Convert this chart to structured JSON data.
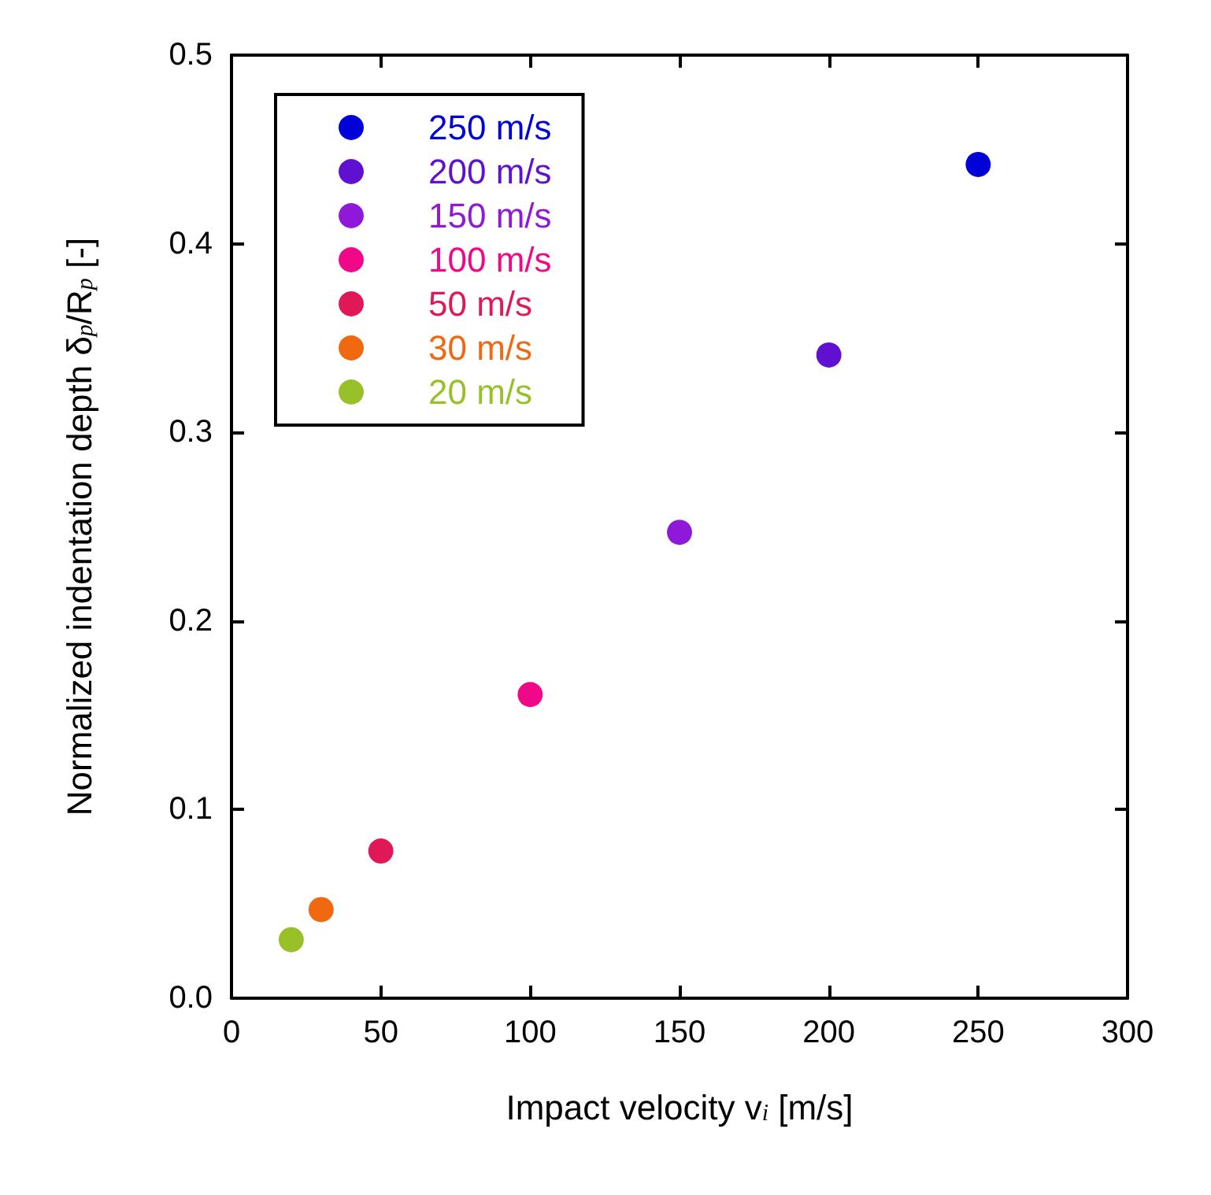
{
  "chart_data": {
    "type": "scatter",
    "xlabel": "Impact velocity v$_{i}$ [m/s]",
    "ylabel": "Normalized indentation depth δ$_{p}$/R$_{p}$ [-]",
    "series": [
      {
        "name": "250 m/s",
        "color": "#0000d8",
        "x": [
          250
        ],
        "values": [
          0.442
        ]
      },
      {
        "name": "200 m/s",
        "color": "#6010d0",
        "x": [
          200
        ],
        "values": [
          0.341
        ]
      },
      {
        "name": "150 m/s",
        "color": "#9018d8",
        "x": [
          150
        ],
        "values": [
          0.247
        ]
      },
      {
        "name": "100 m/s",
        "color": "#f00888",
        "x": [
          100
        ],
        "values": [
          0.161
        ]
      },
      {
        "name": "50 m/s",
        "color": "#e01858",
        "x": [
          50
        ],
        "values": [
          0.078
        ]
      },
      {
        "name": "30 m/s",
        "color": "#f06810",
        "x": [
          30
        ],
        "values": [
          0.047
        ]
      },
      {
        "name": "20 m/s",
        "color": "#98c028",
        "x": [
          20
        ],
        "values": [
          0.031
        ]
      }
    ],
    "xlim": [
      0,
      300
    ],
    "xticks": [
      0,
      50,
      100,
      150,
      200,
      250,
      300
    ],
    "ylim": [
      0,
      0.5
    ],
    "yticks": [
      {
        "value": 0,
        "label": "0.0"
      },
      0.1,
      0.2,
      0.3,
      0.4,
      0.5
    ],
    "grid": false,
    "legend": "top left",
    "marker": "circle"
  }
}
